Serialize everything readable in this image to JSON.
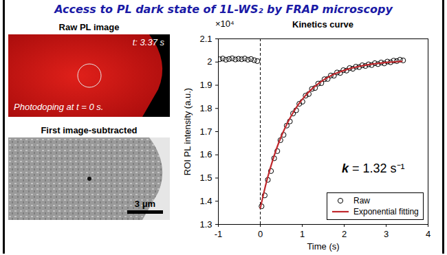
{
  "header": {
    "title": "Access to PL dark state of 1L-WS₂ by FRAP microscopy"
  },
  "images": [
    {
      "title": "Raw PL image",
      "time_label": "t: 3.37 s",
      "caption": "Photodoping at t = 0 s."
    },
    {
      "title": "First image-subtracted",
      "scale_bar": "3 μm"
    }
  ],
  "chart_data": {
    "type": "line",
    "title": "Kinetics curve",
    "x_label": "Time (s)",
    "y_label": "ROI PL intensity (a.u.)",
    "y_multiplier": "×10⁴",
    "xlim": [
      -1,
      4
    ],
    "xticks": [
      -1,
      0,
      1,
      2,
      3,
      4
    ],
    "ylim": [
      1.3,
      2.1
    ],
    "yticks": [
      1.3,
      1.4,
      1.5,
      1.6,
      1.7,
      1.8,
      1.9,
      2,
      2.1
    ],
    "grid": false,
    "legend": "lower right",
    "annotations": [
      {
        "text": "k = 1.32 s⁻¹"
      }
    ],
    "reference_lines": [
      {
        "x": 0,
        "line_style": "dashed"
      }
    ],
    "series": [
      {
        "name": "Raw",
        "type": "scatter",
        "marker": "circle",
        "color": "#000000",
        "x": [
          -0.97,
          -0.895,
          -0.82,
          -0.745,
          -0.67,
          -0.595,
          -0.52,
          -0.445,
          -0.37,
          -0.295,
          -0.22,
          -0.145,
          -0.07,
          0.03,
          0.105,
          0.18,
          0.255,
          0.33,
          0.405,
          0.48,
          0.555,
          0.63,
          0.705,
          0.78,
          0.855,
          0.93,
          1.005,
          1.08,
          1.155,
          1.23,
          1.305,
          1.38,
          1.455,
          1.53,
          1.605,
          1.68,
          1.755,
          1.83,
          1.905,
          1.98,
          2.055,
          2.13,
          2.205,
          2.28,
          2.355,
          2.43,
          2.505,
          2.58,
          2.655,
          2.73,
          2.805,
          2.88,
          2.955,
          3.03,
          3.105,
          3.18,
          3.255,
          3.33,
          3.405
        ],
        "values": [
          2.012,
          2.015,
          2.01,
          2.013,
          2.016,
          2.011,
          2.014,
          2.012,
          2.015,
          2.01,
          2.013,
          2.008,
          2.004,
          1.378,
          1.425,
          1.492,
          1.53,
          1.585,
          1.616,
          1.663,
          1.686,
          1.726,
          1.744,
          1.778,
          1.792,
          1.82,
          1.829,
          1.855,
          1.862,
          1.884,
          1.888,
          1.907,
          1.909,
          1.926,
          1.927,
          1.942,
          1.941,
          1.955,
          1.953,
          1.965,
          1.963,
          1.974,
          1.971,
          1.98,
          1.978,
          1.986,
          1.983,
          1.99,
          1.987,
          1.995,
          1.991,
          1.998,
          1.994,
          2.002,
          1.999,
          2.006,
          2.004,
          2.01,
          2.007
        ]
      },
      {
        "name": "Exponential fitting",
        "type": "line",
        "line_style": "solid",
        "color": "#c0282d",
        "x": [
          0,
          0.15,
          0.3,
          0.45,
          0.6,
          0.75,
          0.9,
          1.05,
          1.2,
          1.35,
          1.5,
          1.65,
          1.8,
          1.95,
          2.1,
          2.25,
          2.4,
          2.55,
          2.7,
          2.85,
          3.0,
          3.15,
          3.3,
          3.375
        ],
        "values": [
          1.37,
          1.485,
          1.579,
          1.657,
          1.72,
          1.772,
          1.815,
          1.85,
          1.879,
          1.902,
          1.922,
          1.938,
          1.951,
          1.961,
          1.97,
          1.977,
          1.983,
          1.988,
          1.992,
          1.995,
          1.998,
          2.0,
          2.002,
          2.003
        ]
      }
    ]
  }
}
